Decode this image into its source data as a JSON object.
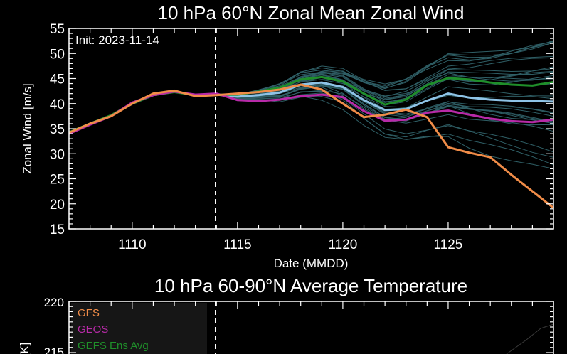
{
  "chart_data": [
    {
      "type": "line",
      "title": "10 hPa  60°N   Zonal Mean Zonal Wind",
      "xlabel": "Date (MMDD)",
      "ylabel": "Zonal  Wind   [m/s]",
      "annotation": "Init: 2023-11-14",
      "xlim": [
        1107,
        1130
      ],
      "ylim": [
        15,
        55
      ],
      "x_ticks": [
        "1110",
        "1115",
        "1120",
        "1125"
      ],
      "y_ticks": [
        "15",
        "20",
        "25",
        "30",
        "35",
        "40",
        "45",
        "50",
        "55"
      ],
      "init_day": 1114,
      "grid": false,
      "x": [
        1107,
        1108,
        1109,
        1110,
        1111,
        1112,
        1113,
        1114,
        1115,
        1116,
        1117,
        1118,
        1119,
        1120,
        1121,
        1122,
        1123,
        1124,
        1125,
        1126,
        1127,
        1128,
        1129,
        1130
      ],
      "colors": {
        "background": "#000000",
        "GFS": "#f08c48",
        "GEOS": "#b82aa8",
        "GEFS Ens Avg": "#1f8f2a",
        "ensemble_mean": "#8ec3e6",
        "members": "#2f5f66",
        "init_line": "#ffffff"
      },
      "series": [
        {
          "name": "GFS",
          "values": [
            34.2,
            36.0,
            37.5,
            40.0,
            42.0,
            42.6,
            41.5,
            41.7,
            42.0,
            42.3,
            42.8,
            43.8,
            42.8,
            40.0,
            37.3,
            37.8,
            38.8,
            37.3,
            31.3,
            30.2,
            29.3,
            25.8,
            22.5,
            19.2
          ]
        },
        {
          "name": "GEOS",
          "values": [
            34.0,
            35.8,
            37.5,
            40.2,
            41.7,
            42.4,
            41.8,
            42.0,
            40.7,
            40.5,
            40.8,
            41.5,
            41.8,
            41.3,
            38.5,
            36.6,
            36.8,
            38.2,
            38.6,
            37.8,
            37.0,
            36.5,
            36.3,
            36.8
          ]
        },
        {
          "name": "GEFS Ens Avg",
          "values": [
            34.3,
            36.0,
            37.7,
            40.0,
            41.7,
            42.3,
            41.7,
            41.8,
            41.8,
            42.4,
            43.2,
            44.8,
            45.3,
            44.4,
            42.0,
            39.8,
            40.8,
            43.7,
            45.1,
            44.8,
            44.2,
            43.8,
            43.6,
            44.3
          ]
        },
        {
          "name": "",
          "values": [
            34.2,
            36.0,
            37.6,
            40.0,
            41.7,
            42.4,
            41.7,
            41.8,
            41.4,
            41.7,
            42.2,
            43.8,
            44.2,
            43.3,
            40.7,
            38.7,
            38.9,
            40.6,
            42.0,
            41.2,
            40.8,
            40.6,
            40.5,
            40.4
          ]
        }
      ],
      "members_note_in_script": true
    },
    {
      "type": "line",
      "title": "10 hPa  60-90°N Average Temperature",
      "ylabel": "[K]",
      "y_ticks_visible": [
        "220",
        "215"
      ],
      "legend": [
        "GFS",
        "GEOS",
        "GEFS Ens Avg"
      ],
      "legend_colors": [
        "#f08c48",
        "#b82aa8",
        "#1f8f2a"
      ],
      "legend_position": "top-left"
    }
  ]
}
